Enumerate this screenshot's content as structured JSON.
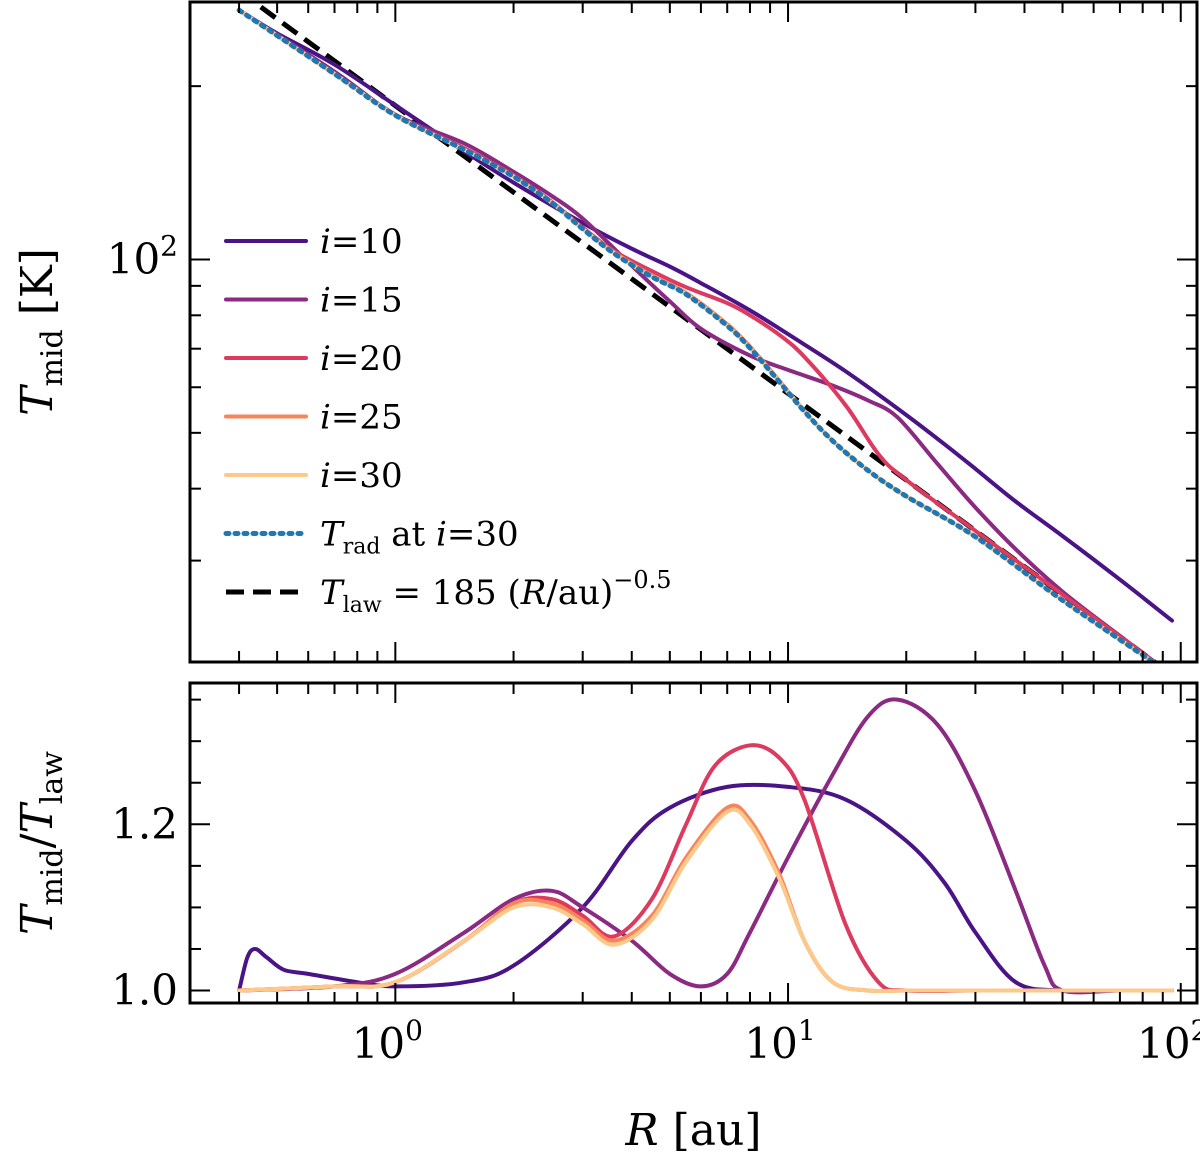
{
  "chart_data": [
    {
      "type": "line",
      "panel": "top",
      "xscale": "log",
      "yscale": "log",
      "xlim": [
        0.3,
        110
      ],
      "ylim": [
        20,
        280
      ],
      "ylabel": {
        "sym": "T",
        "sub": "mid",
        "unit": " [K]"
      },
      "yticks": [
        {
          "value": 100,
          "base": "10",
          "exp": "2"
        }
      ],
      "series": [
        {
          "name": "i=10",
          "color": "#4a1486",
          "x": [
            0.4,
            0.5,
            0.7,
            1.0,
            1.5,
            2.0,
            3.0,
            4.0,
            5.0,
            6.0,
            8.0,
            10.0,
            14.0,
            20.0,
            25.0,
            30.0,
            38.0,
            50.0,
            70.0,
            95.0
          ],
          "y": [
            271.0,
            247.0,
            218.0,
            185.3,
            154.0,
            136.0,
            115.7,
            104.4,
            97.2,
            91.0,
            81.6,
            74.2,
            64.0,
            53.7,
            47.8,
            43.3,
            38.0,
            33.1,
            27.8,
            23.6
          ]
        },
        {
          "name": "i=15",
          "color": "#8a2a82",
          "x": [
            0.4,
            0.7,
            1.0,
            1.5,
            2.0,
            2.5,
            3.0,
            4.0,
            5.0,
            6.0,
            8.0,
            10.0,
            13.0,
            16.0,
            19.0,
            24.0,
            30.0,
            38.0,
            50.0,
            70.0,
            95.0
          ],
          "y": [
            271.0,
            212.0,
            178.5,
            159.0,
            142.0,
            129.0,
            117.8,
            97.5,
            84.6,
            75.8,
            68.1,
            64.3,
            60.4,
            56.9,
            53.2,
            44.2,
            37.1,
            31.4,
            26.5,
            22.2,
            19.0
          ]
        },
        {
          "name": "i=20",
          "color": "#dc3a5e",
          "x": [
            0.4,
            0.7,
            1.0,
            1.5,
            2.0,
            2.5,
            3.0,
            3.6,
            4.5,
            5.5,
            7.0,
            8.0,
            9.5,
            11.0,
            14.0,
            17.0,
            20.0,
            30.0,
            50.0,
            95.0
          ],
          "y": [
            271.0,
            210.0,
            178.5,
            156.0,
            140.1,
            126.0,
            113.6,
            103.5,
            95.5,
            89.5,
            84.0,
            80.0,
            74.0,
            67.8,
            55.9,
            45.9,
            41.4,
            33.8,
            26.2,
            19.0
          ]
        },
        {
          "name": "i=25",
          "color": "#f8845c",
          "x": [
            0.4,
            0.7,
            1.0,
            1.5,
            2.0,
            2.5,
            3.0,
            3.6,
            4.5,
            5.5,
            7.0,
            8.0,
            9.5,
            11.0,
            13.0,
            16.0,
            20.0,
            30.0,
            50.0,
            95.0
          ],
          "y": [
            271.0,
            210.0,
            178.0,
            155.0,
            139.3,
            125.5,
            113.0,
            103.0,
            93.8,
            87.5,
            77.2,
            70.6,
            61.6,
            54.6,
            48.4,
            43.0,
            38.8,
            33.0,
            25.6,
            19.0
          ]
        },
        {
          "name": "i=30",
          "color": "#fcc98a",
          "x": [
            0.4,
            0.7,
            1.0,
            1.5,
            2.0,
            2.5,
            3.0,
            3.6,
            4.5,
            5.5,
            7.0,
            8.0,
            9.5,
            11.0,
            13.0,
            16.0,
            20.0,
            30.0,
            50.0,
            95.0
          ],
          "y": [
            271.0,
            210.0,
            178.0,
            155.0,
            139.3,
            125.5,
            113.0,
            102.5,
            93.3,
            87.0,
            76.7,
            70.2,
            61.3,
            54.5,
            48.4,
            43.0,
            38.8,
            33.0,
            25.6,
            19.0
          ]
        },
        {
          "name": "T_rad at i=30",
          "color": "#1f77b4",
          "dash": "dotted",
          "x": [
            0.4,
            0.7,
            1.0,
            1.5,
            2.0,
            2.5,
            3.0,
            3.6,
            4.5,
            5.5,
            7.0,
            8.0,
            9.5,
            11.0,
            13.0,
            16.0,
            20.0,
            30.0,
            50.0,
            95.0
          ],
          "y": [
            271.0,
            210.0,
            178.0,
            155.0,
            139.3,
            125.5,
            113.0,
            102.5,
            93.3,
            87.0,
            76.7,
            70.2,
            61.3,
            54.5,
            48.4,
            43.0,
            38.8,
            33.0,
            25.6,
            19.0
          ]
        },
        {
          "name": "T_law",
          "color": "#000000",
          "dash": "dashed",
          "x": [
            0.4,
            95.0
          ],
          "y": [
            292.5,
            19.0
          ]
        }
      ],
      "legend": {
        "placement": "left-center",
        "entries": [
          {
            "series": "i=10",
            "sym": "i",
            "text": "=10"
          },
          {
            "series": "i=15",
            "sym": "i",
            "text": "=15"
          },
          {
            "series": "i=20",
            "sym": "i",
            "text": "=20"
          },
          {
            "series": "i=25",
            "sym": "i",
            "text": "=25"
          },
          {
            "series": "i=30",
            "sym": "i",
            "text": "=30"
          },
          {
            "series": "T_rad at i=30",
            "sym": "T",
            "sub": "rad",
            "text": " at ",
            "sym2": "i",
            "text2": "=30"
          },
          {
            "series": "T_law",
            "sym": "T",
            "sub": "law",
            "text": " = 185 (",
            "sym2": "R",
            "text2": "/au)",
            "sup": "−0.5"
          }
        ]
      }
    },
    {
      "type": "line",
      "panel": "bottom",
      "xscale": "log",
      "yscale": "linear",
      "xlim": [
        0.3,
        110
      ],
      "ylim": [
        0.985,
        1.37
      ],
      "xlabel": {
        "sym": "R",
        "unit": " [au]"
      },
      "ylabel": {
        "sym1": "T",
        "sub1": "mid",
        "slash": "/",
        "sym2": "T",
        "sub2": "law"
      },
      "xticks": [
        {
          "value": 1,
          "base": "10",
          "exp": "0"
        },
        {
          "value": 10,
          "base": "10",
          "exp": "1"
        },
        {
          "value": 100,
          "base": "10",
          "exp": "2"
        }
      ],
      "yticks": [
        {
          "value": 1.0,
          "label": "1.0"
        },
        {
          "value": 1.2,
          "label": "1.2"
        }
      ],
      "series": [
        {
          "name": "i=10",
          "color": "#4a1486",
          "x": [
            0.4,
            0.42,
            0.44,
            0.47,
            0.52,
            0.6,
            0.8,
            1.0,
            1.5,
            2.0,
            3.0,
            4.0,
            5.0,
            7.0,
            10.0,
            14.0,
            20.0,
            25.0,
            30.0,
            38.0,
            50.0,
            70.0,
            95.0
          ],
          "y": [
            1.0,
            1.04,
            1.05,
            1.04,
            1.025,
            1.02,
            1.01,
            1.005,
            1.01,
            1.03,
            1.1,
            1.18,
            1.22,
            1.245,
            1.245,
            1.23,
            1.18,
            1.13,
            1.07,
            1.01,
            1.0,
            1.0,
            1.0
          ]
        },
        {
          "name": "i=15",
          "color": "#8a2a82",
          "x": [
            0.4,
            0.7,
            1.0,
            1.5,
            2.0,
            2.5,
            3.0,
            4.0,
            5.0,
            6.0,
            7.0,
            8.0,
            10.0,
            13.0,
            16.0,
            19.0,
            24.0,
            30.0,
            38.0,
            45.0,
            50.0,
            70.0,
            95.0
          ],
          "y": [
            1.0,
            1.005,
            1.02,
            1.07,
            1.11,
            1.12,
            1.1,
            1.06,
            1.02,
            1.005,
            1.02,
            1.07,
            1.16,
            1.26,
            1.33,
            1.35,
            1.32,
            1.24,
            1.12,
            1.03,
            1.0,
            1.0,
            1.0
          ]
        },
        {
          "name": "i=20",
          "color": "#dc3a5e",
          "x": [
            0.4,
            0.7,
            1.0,
            1.5,
            2.0,
            2.5,
            3.0,
            3.6,
            4.5,
            5.5,
            6.5,
            8.0,
            9.5,
            11.0,
            14.0,
            17.0,
            20.0,
            30.0,
            50.0,
            95.0
          ],
          "y": [
            1.0,
            1.005,
            1.01,
            1.06,
            1.105,
            1.11,
            1.09,
            1.065,
            1.11,
            1.2,
            1.27,
            1.295,
            1.28,
            1.23,
            1.08,
            1.01,
            1.0,
            1.0,
            1.0,
            1.0
          ]
        },
        {
          "name": "i=25",
          "color": "#f8845c",
          "x": [
            0.4,
            0.7,
            1.0,
            1.5,
            2.0,
            2.5,
            3.0,
            3.6,
            4.5,
            5.5,
            7.0,
            8.0,
            9.5,
            11.0,
            13.0,
            16.0,
            20.0,
            30.0,
            50.0,
            95.0
          ],
          "y": [
            1.0,
            1.005,
            1.01,
            1.06,
            1.105,
            1.105,
            1.085,
            1.06,
            1.09,
            1.16,
            1.22,
            1.205,
            1.14,
            1.06,
            1.01,
            1.0,
            1.0,
            1.0,
            1.0,
            1.0
          ]
        },
        {
          "name": "i=30",
          "color": "#fcc98a",
          "x": [
            0.4,
            0.7,
            1.0,
            1.5,
            2.0,
            2.5,
            3.0,
            3.6,
            4.5,
            5.5,
            7.0,
            8.0,
            9.5,
            11.0,
            13.0,
            16.0,
            20.0,
            30.0,
            50.0,
            95.0
          ],
          "y": [
            1.0,
            1.005,
            1.01,
            1.06,
            1.1,
            1.1,
            1.08,
            1.055,
            1.085,
            1.155,
            1.215,
            1.2,
            1.135,
            1.06,
            1.01,
            1.0,
            1.0,
            1.0,
            1.0,
            1.0
          ]
        }
      ]
    }
  ]
}
